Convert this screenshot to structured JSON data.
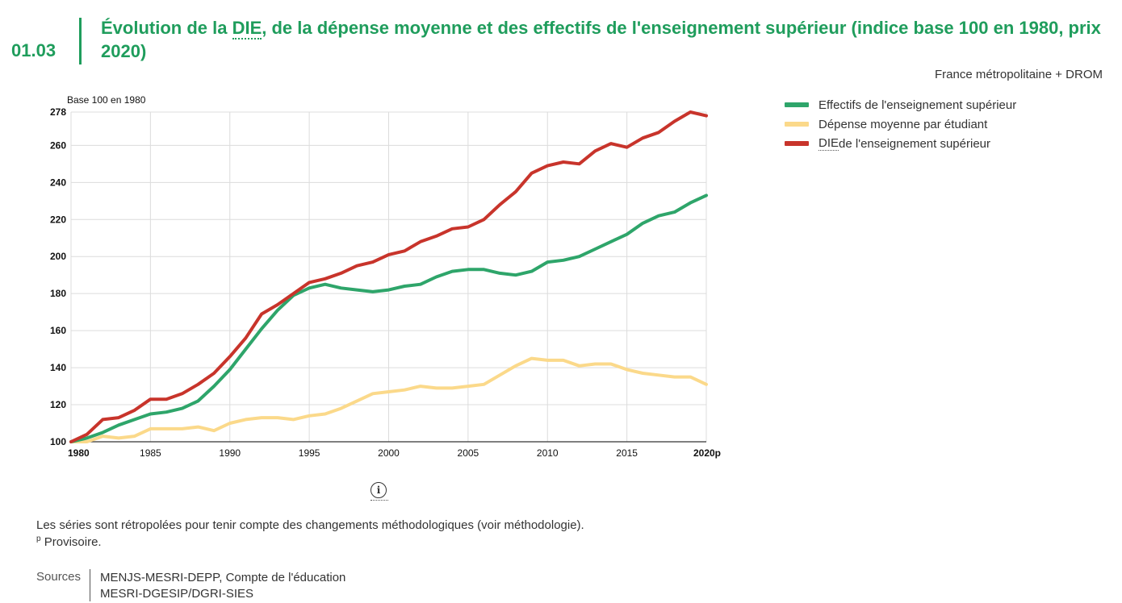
{
  "header": {
    "figure_number": "01.03",
    "title_prefix": "Évolution de la ",
    "title_abbr": "DIE",
    "title_suffix": ", de la dépense moyenne et des effectifs de l'enseignement supérieur (indice base 100 en 1980, prix 2020)",
    "scope": "France métropolitaine + DROM"
  },
  "colors": {
    "accent": "#1f9d5c",
    "effectifs": "#2ea56a",
    "depense": "#fbd98a",
    "die": "#c8342b",
    "grid": "#dcdcdc"
  },
  "legend": {
    "effectifs": "Effectifs de l'enseignement supérieur",
    "depense": "Dépense moyenne par étudiant",
    "die_abbr": "DIE",
    "die_suffix": " de l'enseignement supérieur"
  },
  "chart_data": {
    "type": "line",
    "ylabel": "Base 100 en 1980",
    "ylim": [
      100,
      278
    ],
    "yticks": [
      "100",
      "120",
      "140",
      "160",
      "180",
      "200",
      "220",
      "240",
      "260",
      "278"
    ],
    "ytick_values": [
      100,
      120,
      140,
      160,
      180,
      200,
      220,
      240,
      260,
      278
    ],
    "xlim": [
      1980,
      2020
    ],
    "xticks": [
      "1980",
      "1985",
      "1990",
      "1995",
      "2000",
      "2005",
      "2010",
      "2015",
      "2020p"
    ],
    "xtick_values": [
      1980,
      1985,
      1990,
      1995,
      2000,
      2005,
      2010,
      2015,
      2020
    ],
    "grid": "vertical and horizontal",
    "legend_position": "right",
    "x": [
      1980,
      1981,
      1982,
      1983,
      1984,
      1985,
      1986,
      1987,
      1988,
      1989,
      1990,
      1991,
      1992,
      1993,
      1994,
      1995,
      1996,
      1997,
      1998,
      1999,
      2000,
      2001,
      2002,
      2003,
      2004,
      2005,
      2006,
      2007,
      2008,
      2009,
      2010,
      2011,
      2012,
      2013,
      2014,
      2015,
      2016,
      2017,
      2018,
      2019,
      2020
    ],
    "series": [
      {
        "name": "Effectifs de l'enseignement supérieur",
        "key": "effectifs",
        "values": [
          100,
          102,
          105,
          109,
          112,
          115,
          116,
          118,
          122,
          130,
          139,
          150,
          161,
          171,
          179,
          183,
          185,
          183,
          182,
          181,
          182,
          184,
          185,
          189,
          192,
          193,
          193,
          191,
          190,
          192,
          197,
          198,
          200,
          204,
          208,
          212,
          218,
          222,
          224,
          229,
          233
        ]
      },
      {
        "name": "Dépense moyenne par étudiant",
        "key": "depense",
        "values": [
          100,
          100,
          103,
          102,
          103,
          107,
          107,
          107,
          108,
          106,
          110,
          112,
          113,
          113,
          112,
          114,
          115,
          118,
          122,
          126,
          127,
          128,
          130,
          129,
          129,
          130,
          131,
          136,
          141,
          145,
          144,
          144,
          141,
          142,
          142,
          139,
          137,
          136,
          135,
          135,
          131
        ]
      },
      {
        "name": "DIE de l'enseignement supérieur",
        "key": "die",
        "values": [
          100,
          104,
          112,
          113,
          117,
          123,
          123,
          126,
          131,
          137,
          146,
          156,
          169,
          174,
          180,
          186,
          188,
          191,
          195,
          197,
          201,
          203,
          208,
          211,
          215,
          216,
          220,
          228,
          235,
          245,
          249,
          251,
          250,
          257,
          261,
          259,
          264,
          267,
          273,
          278,
          276
        ]
      }
    ]
  },
  "info_icon": "info-icon",
  "notes": {
    "line1": "Les séries sont rétropolées pour tenir compte des changements méthodologiques (voir méthodologie).",
    "provisional_marker": "p",
    "provisional_text": " Provisoire."
  },
  "sources": {
    "label": "Sources",
    "line1": "MENJS-MESRI-DEPP, Compte de l'éducation",
    "line2": "MESRI-DGESIP/DGRI-SIES"
  }
}
